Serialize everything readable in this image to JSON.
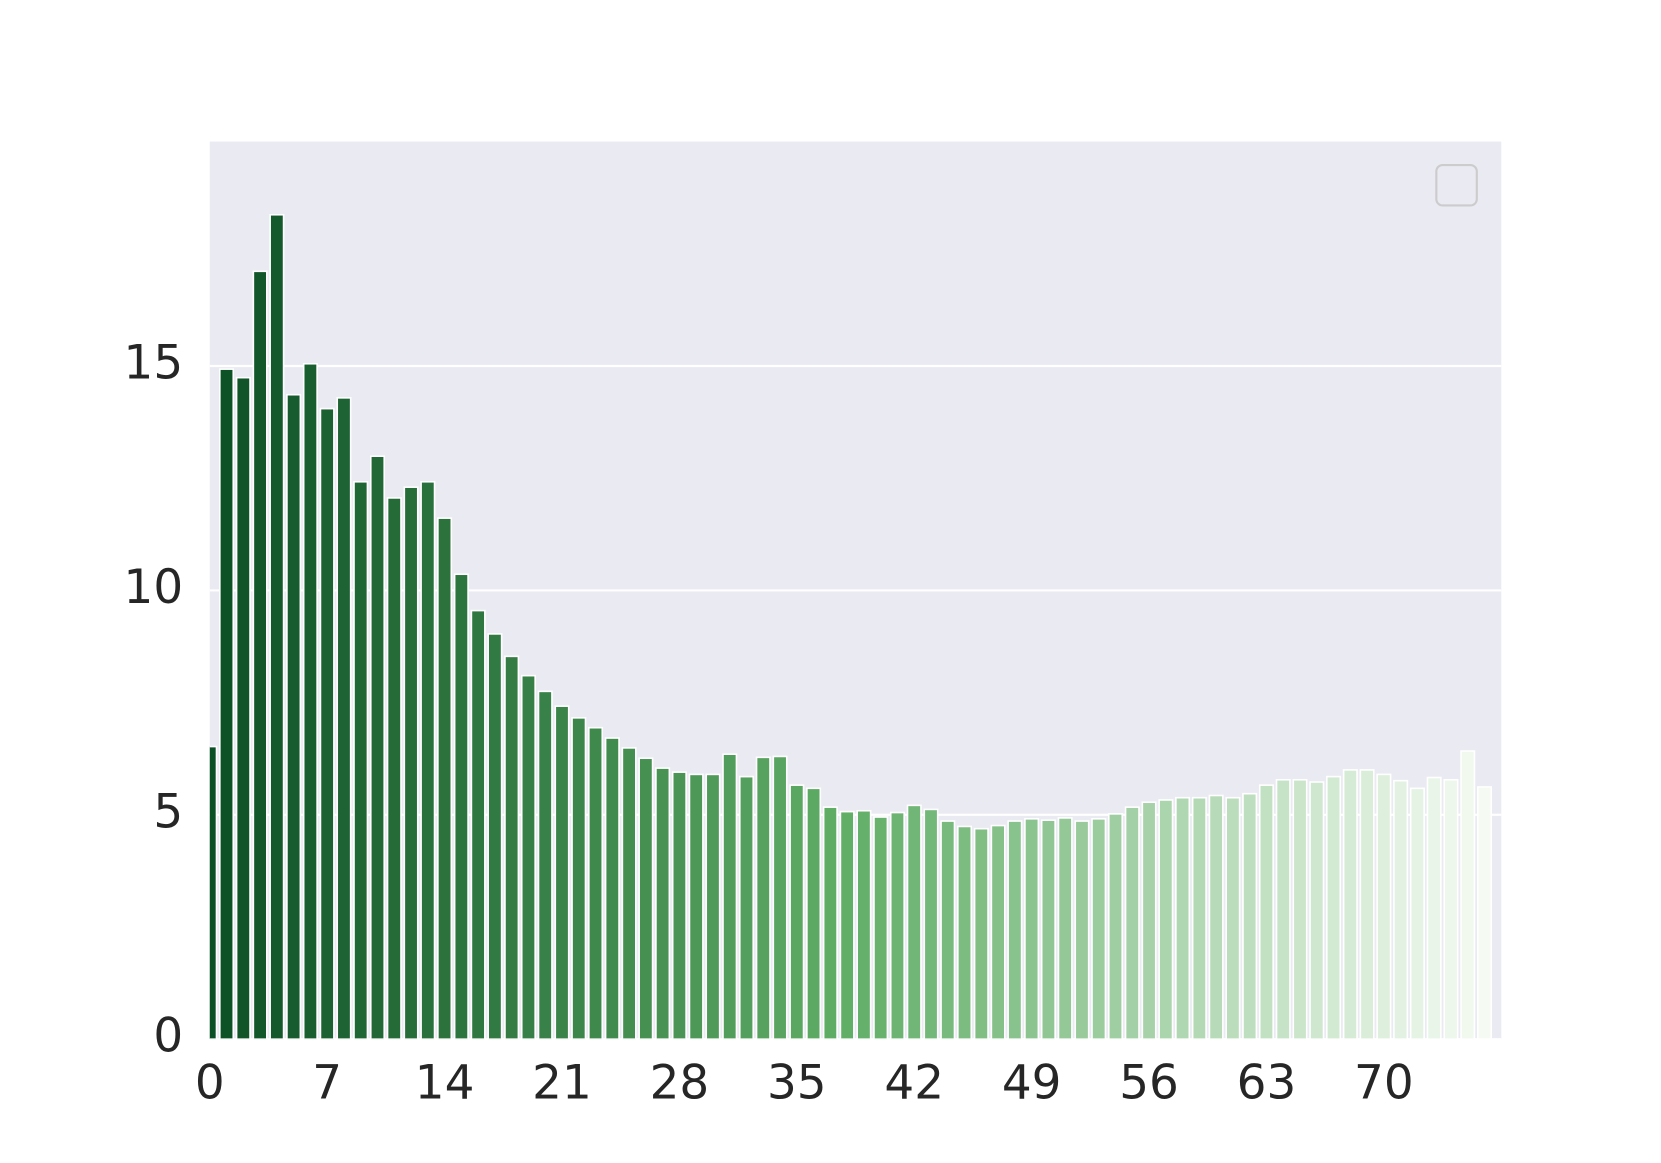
{
  "chart_data": {
    "type": "bar",
    "x": [
      0,
      1,
      2,
      3,
      4,
      5,
      6,
      7,
      8,
      9,
      10,
      11,
      12,
      13,
      14,
      15,
      16,
      17,
      18,
      19,
      20,
      21,
      22,
      23,
      24,
      25,
      26,
      27,
      28,
      29,
      30,
      31,
      32,
      33,
      34,
      35,
      36,
      37,
      38,
      39,
      40,
      41,
      42,
      43,
      44,
      45,
      46,
      47,
      48,
      49,
      50,
      51,
      52,
      53,
      54,
      55,
      56,
      57,
      58,
      59,
      60,
      61,
      62,
      63,
      64,
      65,
      66,
      67,
      68,
      69,
      70,
      71,
      72,
      73,
      74,
      75,
      76
    ],
    "values": [
      6.52,
      14.93,
      14.74,
      17.11,
      18.37,
      14.36,
      15.05,
      14.05,
      14.29,
      12.42,
      12.99,
      12.06,
      12.3,
      12.42,
      11.61,
      10.36,
      9.55,
      9.03,
      8.53,
      8.1,
      7.75,
      7.42,
      7.16,
      6.94,
      6.71,
      6.49,
      6.26,
      6.04,
      5.95,
      5.9,
      5.9,
      6.35,
      5.85,
      6.28,
      6.3,
      5.66,
      5.59,
      5.17,
      5.07,
      5.09,
      4.95,
      5.05,
      5.21,
      5.12,
      4.86,
      4.74,
      4.69,
      4.76,
      4.86,
      4.91,
      4.88,
      4.93,
      4.86,
      4.91,
      5.02,
      5.17,
      5.28,
      5.33,
      5.38,
      5.38,
      5.43,
      5.38,
      5.47,
      5.66,
      5.78,
      5.78,
      5.73,
      5.85,
      6.0,
      6.0,
      5.9,
      5.76,
      5.59,
      5.83,
      5.78,
      6.42,
      5.62
    ],
    "colors": [
      "#0b4f25",
      "#61ae67",
      "#f5fbf3"
    ],
    "xlim": [
      0,
      77
    ],
    "xticks": [
      0,
      7,
      14,
      21,
      28,
      35,
      42,
      49,
      56,
      63,
      70
    ],
    "ylim": [
      0,
      20
    ],
    "yticks": [
      0,
      5,
      10,
      15
    ],
    "grid": true
  }
}
